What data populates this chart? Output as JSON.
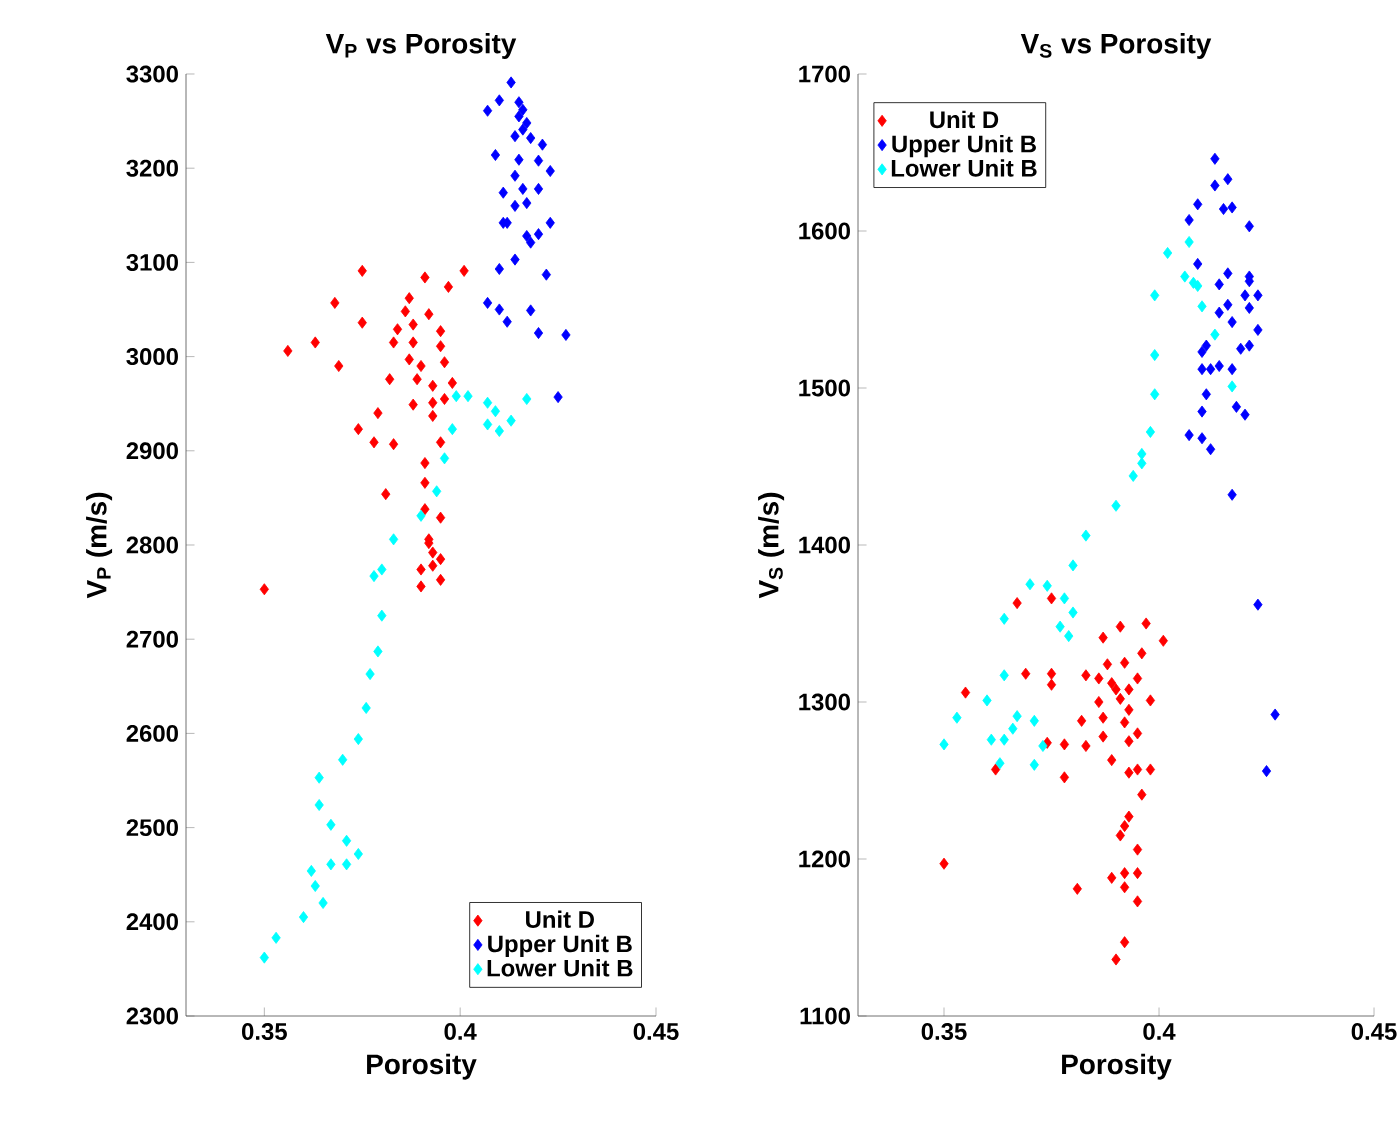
{
  "chart_data": [
    {
      "type": "scatter",
      "title": "V$_{P}$ vs Porosity",
      "xlabel": "Porosity",
      "ylabel": "V$_{P}$ (m/s)",
      "xlim": [
        0.33,
        0.45
      ],
      "xticks": [
        0.35,
        0.4,
        0.45
      ],
      "ylim": [
        2300,
        3300
      ],
      "yticks": [
        2300,
        2400,
        2500,
        2600,
        2700,
        2800,
        2900,
        3000,
        3100,
        3200,
        3300
      ],
      "legend": "bottom right",
      "marker": "diamond",
      "grid": false,
      "series": [
        {
          "name": "Unit D",
          "color": "#ff0000",
          "x": [
            0.375,
            0.391,
            0.401,
            0.397,
            0.368,
            0.387,
            0.386,
            0.392,
            0.375,
            0.384,
            0.388,
            0.395,
            0.356,
            0.363,
            0.383,
            0.388,
            0.395,
            0.369,
            0.387,
            0.39,
            0.396,
            0.382,
            0.389,
            0.393,
            0.398,
            0.388,
            0.393,
            0.396,
            0.393,
            0.379,
            0.374,
            0.378,
            0.383,
            0.395,
            0.391,
            0.391,
            0.381,
            0.391,
            0.395,
            0.392,
            0.393,
            0.392,
            0.39,
            0.393,
            0.395,
            0.39,
            0.395,
            0.35
          ],
          "values": [
            3091,
            3084,
            3091,
            3074,
            3057,
            3062,
            3048,
            3045,
            3036,
            3029,
            3034,
            3027,
            3006,
            3015,
            3015,
            3015,
            3011,
            2990,
            2997,
            2990,
            2994,
            2976,
            2976,
            2969,
            2972,
            2949,
            2951,
            2955,
            2937,
            2940,
            2923,
            2909,
            2907,
            2909,
            2887,
            2866,
            2854,
            2838,
            2829,
            2806,
            2792,
            2802,
            2774,
            2778,
            2785,
            2756,
            2763,
            2753
          ]
        },
        {
          "name": "Upper Unit B",
          "color": "#0000ff",
          "x": [
            0.413,
            0.407,
            0.41,
            0.415,
            0.416,
            0.415,
            0.417,
            0.416,
            0.414,
            0.418,
            0.421,
            0.409,
            0.415,
            0.42,
            0.423,
            0.414,
            0.411,
            0.416,
            0.42,
            0.417,
            0.414,
            0.411,
            0.412,
            0.423,
            0.42,
            0.417,
            0.418,
            0.414,
            0.41,
            0.422,
            0.407,
            0.41,
            0.412,
            0.418,
            0.42,
            0.427,
            0.425
          ],
          "values": [
            3291,
            3261,
            3272,
            3270,
            3262,
            3255,
            3248,
            3241,
            3234,
            3232,
            3225,
            3214,
            3209,
            3208,
            3197,
            3192,
            3174,
            3178,
            3178,
            3163,
            3160,
            3142,
            3142,
            3142,
            3130,
            3128,
            3121,
            3103,
            3093,
            3087,
            3057,
            3050,
            3037,
            3049,
            3025,
            3023,
            2957
          ]
        },
        {
          "name": "Lower Unit B",
          "color": "#00ffff",
          "x": [
            0.399,
            0.402,
            0.407,
            0.409,
            0.417,
            0.407,
            0.41,
            0.413,
            0.398,
            0.396,
            0.394,
            0.39,
            0.383,
            0.378,
            0.38,
            0.38,
            0.379,
            0.377,
            0.376,
            0.374,
            0.37,
            0.364,
            0.364,
            0.367,
            0.371,
            0.374,
            0.371,
            0.367,
            0.362,
            0.363,
            0.365,
            0.36,
            0.353,
            0.35
          ],
          "values": [
            2958,
            2958,
            2951,
            2942,
            2955,
            2928,
            2921,
            2932,
            2923,
            2892,
            2857,
            2831,
            2806,
            2767,
            2774,
            2725,
            2687,
            2663,
            2627,
            2594,
            2572,
            2553,
            2524,
            2503,
            2486,
            2472,
            2461,
            2461,
            2454,
            2438,
            2420,
            2405,
            2383,
            2362
          ]
        }
      ]
    },
    {
      "type": "scatter",
      "title": "V$_{S}$ vs Porosity",
      "xlabel": "Porosity",
      "ylabel": "V$_{S}$ (m/s)",
      "xlim": [
        0.33,
        0.45
      ],
      "xticks": [
        0.35,
        0.4,
        0.45
      ],
      "ylim": [
        1100,
        1700
      ],
      "yticks": [
        1100,
        1200,
        1300,
        1400,
        1500,
        1600,
        1700
      ],
      "legend": "top left",
      "marker": "diamond",
      "grid": false,
      "series": [
        {
          "name": "Unit D",
          "color": "#ff0000",
          "x": [
            0.367,
            0.375,
            0.391,
            0.397,
            0.387,
            0.401,
            0.396,
            0.388,
            0.392,
            0.369,
            0.375,
            0.383,
            0.386,
            0.389,
            0.395,
            0.39,
            0.393,
            0.375,
            0.355,
            0.386,
            0.391,
            0.398,
            0.393,
            0.382,
            0.387,
            0.392,
            0.395,
            0.387,
            0.374,
            0.378,
            0.383,
            0.393,
            0.362,
            0.378,
            0.389,
            0.393,
            0.395,
            0.398,
            0.396,
            0.393,
            0.392,
            0.391,
            0.395,
            0.35,
            0.389,
            0.392,
            0.395,
            0.392,
            0.381,
            0.395,
            0.392,
            0.39
          ],
          "values": [
            1363,
            1366,
            1348,
            1350,
            1341,
            1339,
            1331,
            1324,
            1325,
            1318,
            1318,
            1317,
            1315,
            1312,
            1315,
            1308,
            1308,
            1311,
            1306,
            1300,
            1302,
            1301,
            1295,
            1288,
            1290,
            1287,
            1280,
            1278,
            1274,
            1273,
            1272,
            1275,
            1257,
            1252,
            1263,
            1255,
            1257,
            1257,
            1241,
            1227,
            1221,
            1215,
            1206,
            1197,
            1188,
            1191,
            1191,
            1182,
            1181,
            1173,
            1147,
            1136
          ]
        },
        {
          "name": "Upper Unit B",
          "color": "#0000ff",
          "x": [
            0.413,
            0.413,
            0.416,
            0.409,
            0.415,
            0.417,
            0.421,
            0.407,
            0.409,
            0.416,
            0.421,
            0.421,
            0.414,
            0.42,
            0.423,
            0.416,
            0.421,
            0.414,
            0.417,
            0.423,
            0.411,
            0.41,
            0.419,
            0.421,
            0.41,
            0.412,
            0.414,
            0.417,
            0.411,
            0.418,
            0.42,
            0.41,
            0.407,
            0.41,
            0.412,
            0.417,
            0.423,
            0.427,
            0.425
          ],
          "values": [
            1646,
            1629,
            1633,
            1617,
            1614,
            1615,
            1603,
            1607,
            1579,
            1573,
            1571,
            1568,
            1566,
            1559,
            1559,
            1553,
            1551,
            1548,
            1542,
            1537,
            1527,
            1523,
            1525,
            1527,
            1512,
            1512,
            1514,
            1512,
            1496,
            1488,
            1483,
            1485,
            1470,
            1468,
            1461,
            1432,
            1362,
            1292,
            1256
          ]
        },
        {
          "name": "Lower Unit B",
          "color": "#00ffff",
          "x": [
            0.407,
            0.402,
            0.406,
            0.408,
            0.409,
            0.399,
            0.41,
            0.413,
            0.399,
            0.417,
            0.399,
            0.398,
            0.396,
            0.396,
            0.394,
            0.39,
            0.383,
            0.38,
            0.37,
            0.374,
            0.378,
            0.38,
            0.364,
            0.377,
            0.379,
            0.364,
            0.36,
            0.353,
            0.367,
            0.371,
            0.366,
            0.361,
            0.364,
            0.35,
            0.373,
            0.363,
            0.371
          ],
          "values": [
            1593,
            1586,
            1571,
            1567,
            1565,
            1559,
            1552,
            1534,
            1521,
            1501,
            1496,
            1472,
            1458,
            1452,
            1444,
            1425,
            1406,
            1387,
            1375,
            1374,
            1366,
            1357,
            1353,
            1348,
            1342,
            1317,
            1301,
            1290,
            1291,
            1288,
            1283,
            1276,
            1276,
            1273,
            1272,
            1261,
            1260
          ]
        }
      ]
    }
  ]
}
